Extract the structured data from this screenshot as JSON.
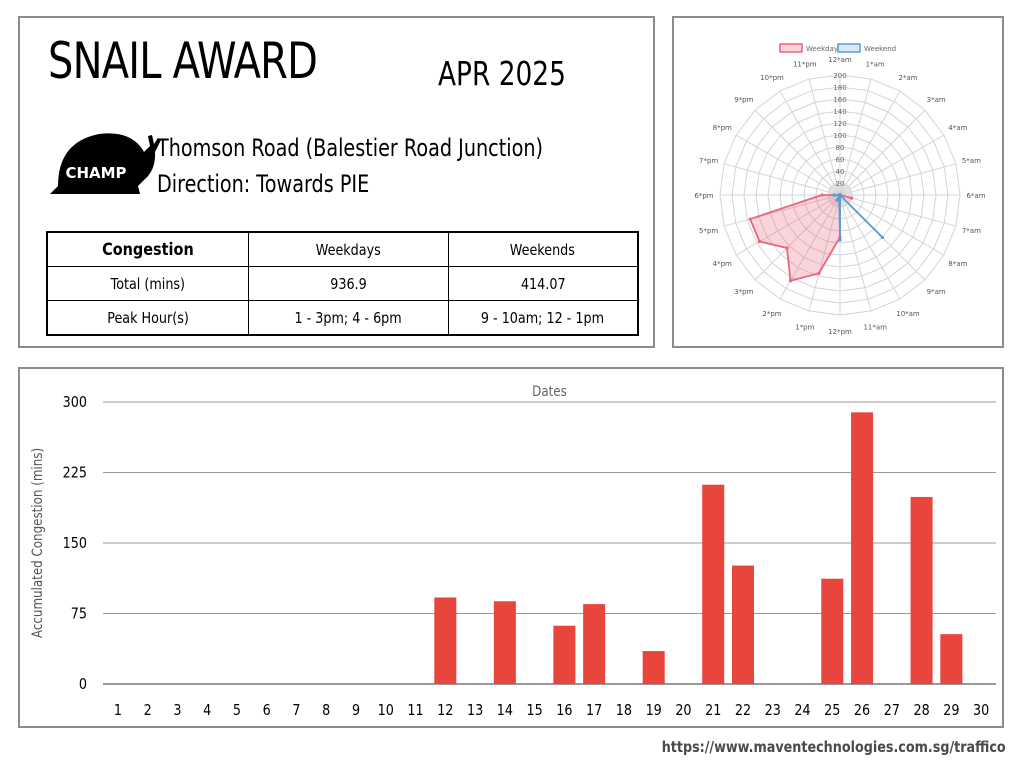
{
  "header": {
    "title": "SNAIL AWARD",
    "period": "APR 2025",
    "badge": "CHAMP",
    "location": "Thomson Road (Balestier Road Junction)",
    "direction": "Direction: Towards PIE"
  },
  "summary_table": {
    "header": [
      "Congestion",
      "Weekdays",
      "Weekends"
    ],
    "rows": [
      [
        "Total (mins)",
        "936.9",
        "414.07"
      ],
      [
        "Peak Hour(s)",
        "1 - 3pm; 4 - 6pm",
        "9 - 10am; 12 - 1pm"
      ]
    ]
  },
  "footer": {
    "url": "https://www.maventechnologies.com.sg/traffico"
  },
  "colors": {
    "bar": "#e8453c",
    "weekday": "#e8677e",
    "weekend": "#5b9bd5",
    "border": "#8c8c8c"
  },
  "chart_data": [
    {
      "type": "radar",
      "categories": [
        "12*am",
        "1*am",
        "2*am",
        "3*am",
        "4*am",
        "5*am",
        "6*am",
        "7*am",
        "8*am",
        "9*am",
        "10*am",
        "11*am",
        "12*pm",
        "1*pm",
        "2*pm",
        "3*pm",
        "4*pm",
        "5*pm",
        "6*pm",
        "7*pm",
        "8*pm",
        "9*pm",
        "10*pm",
        "11*pm"
      ],
      "series": [
        {
          "name": "Weekday",
          "values": [
            0,
            0,
            0,
            0,
            0,
            0,
            0,
            20,
            0,
            0,
            0,
            0,
            70,
            135,
            165,
            125,
            155,
            155,
            30,
            0,
            0,
            0,
            0,
            0
          ]
        },
        {
          "name": "Weekend",
          "values": [
            0,
            0,
            0,
            0,
            0,
            0,
            0,
            0,
            0,
            100,
            0,
            0,
            75,
            5,
            10,
            0,
            0,
            0,
            10,
            0,
            0,
            0,
            0,
            0
          ]
        }
      ],
      "rlim": [
        0,
        200
      ],
      "r_ticks": [
        20,
        40,
        60,
        80,
        100,
        120,
        140,
        160,
        180,
        200
      ],
      "legend_position": "top"
    },
    {
      "type": "bar",
      "title": "Dates",
      "ylabel": "Accumulated Congestion (mins)",
      "categories": [
        "1",
        "2",
        "3",
        "4",
        "5",
        "6",
        "7",
        "8",
        "9",
        "10",
        "11",
        "12",
        "13",
        "14",
        "15",
        "16",
        "17",
        "18",
        "19",
        "20",
        "21",
        "22",
        "23",
        "24",
        "25",
        "26",
        "27",
        "28",
        "29",
        "30"
      ],
      "values": [
        0,
        0,
        0,
        0,
        0,
        0,
        0,
        0,
        0,
        0,
        0,
        92,
        0,
        88,
        0,
        62,
        85,
        0,
        35,
        0,
        212,
        126,
        0,
        0,
        112,
        289,
        0,
        199,
        53,
        0
      ],
      "ylim": [
        0,
        300
      ],
      "y_ticks": [
        "0",
        "75",
        "150",
        "225",
        "300"
      ],
      "grid": true
    }
  ]
}
